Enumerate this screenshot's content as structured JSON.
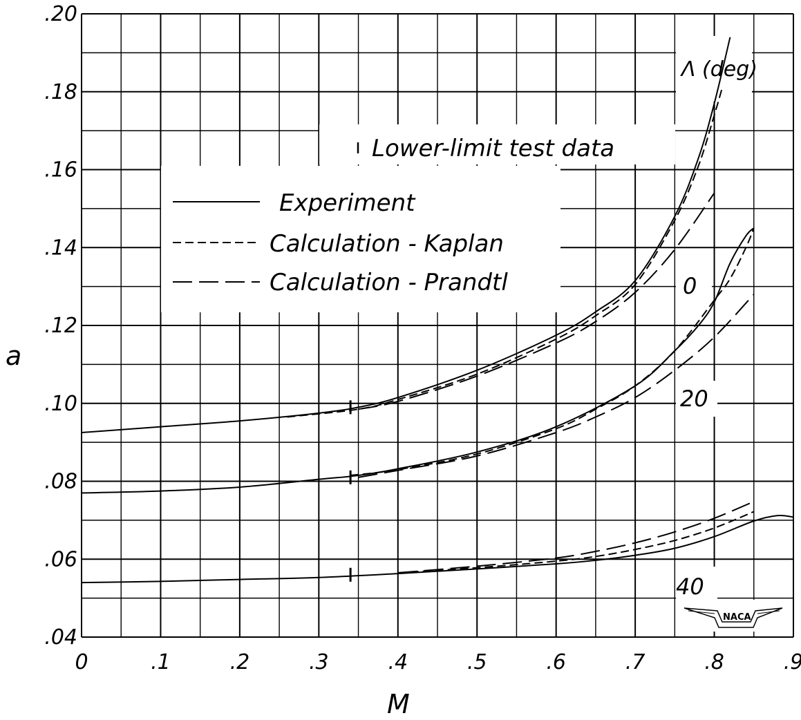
{
  "chart_data": {
    "type": "line",
    "xlabel": "M",
    "ylabel": "a",
    "xlim": [
      0,
      0.9
    ],
    "ylim": [
      0.04,
      0.2
    ],
    "xticks": [
      "0",
      ".1",
      ".2",
      ".3",
      ".4",
      ".5",
      ".6",
      ".7",
      ".8",
      ".9"
    ],
    "yticks": [
      ".04",
      ".06",
      ".08",
      ".10",
      ".12",
      ".14",
      ".16",
      ".18",
      ".20"
    ],
    "grid": true,
    "legend_title": "Λ (deg)",
    "legend": {
      "note": "Lower-limit test data",
      "experiment": "Experiment",
      "kaplan": "Calculation - Kaplan",
      "prandtl": "Calculation - Prandtl"
    },
    "curve_labels": [
      "0",
      "20",
      "40"
    ],
    "curves": [
      {
        "sweep": "0",
        "experiment": {
          "x": [
            0,
            0.1,
            0.2,
            0.3,
            0.35,
            0.4,
            0.5,
            0.6,
            0.65,
            0.7,
            0.75,
            0.78,
            0.8,
            0.82
          ],
          "y": [
            0.0925,
            0.094,
            0.0955,
            0.0975,
            0.099,
            0.1015,
            0.1085,
            0.1175,
            0.1235,
            0.1315,
            0.148,
            0.163,
            0.177,
            0.194
          ]
        },
        "kaplan": {
          "x": [
            0.26,
            0.35,
            0.4,
            0.5,
            0.6,
            0.65,
            0.7,
            0.75,
            0.78,
            0.8,
            0.81
          ],
          "y": [
            0.0965,
            0.0985,
            0.101,
            0.1075,
            0.1165,
            0.1225,
            0.1305,
            0.147,
            0.161,
            0.174,
            0.181
          ]
        },
        "prandtl": {
          "x": [
            0.35,
            0.4,
            0.5,
            0.6,
            0.65,
            0.7,
            0.75,
            0.8
          ],
          "y": [
            0.0985,
            0.1005,
            0.107,
            0.1155,
            0.121,
            0.1285,
            0.1395,
            0.154
          ]
        },
        "test_point": {
          "x": 0.34,
          "y": 0.099
        }
      },
      {
        "sweep": "20",
        "experiment": {
          "x": [
            0,
            0.1,
            0.2,
            0.3,
            0.35,
            0.4,
            0.5,
            0.6,
            0.7,
            0.75,
            0.78,
            0.8,
            0.82,
            0.84,
            0.85
          ],
          "y": [
            0.077,
            0.0775,
            0.0785,
            0.0805,
            0.0815,
            0.0832,
            0.0875,
            0.094,
            0.1045,
            0.1135,
            0.12,
            0.126,
            0.136,
            0.143,
            0.145
          ]
        },
        "kaplan": {
          "x": [
            0.34,
            0.4,
            0.5,
            0.6,
            0.65,
            0.7,
            0.75,
            0.8,
            0.82,
            0.84,
            0.85
          ],
          "y": [
            0.0815,
            0.083,
            0.087,
            0.0935,
            0.0985,
            0.1045,
            0.1135,
            0.1265,
            0.132,
            0.14,
            0.145
          ]
        },
        "prandtl": {
          "x": [
            0.35,
            0.4,
            0.5,
            0.6,
            0.65,
            0.7,
            0.75,
            0.8,
            0.85
          ],
          "y": [
            0.081,
            0.0828,
            0.0865,
            0.0925,
            0.0965,
            0.1015,
            0.1085,
            0.117,
            0.128
          ]
        },
        "test_point": {
          "x": 0.34,
          "y": 0.081
        }
      },
      {
        "sweep": "40",
        "experiment": {
          "x": [
            0,
            0.1,
            0.2,
            0.3,
            0.4,
            0.5,
            0.6,
            0.65,
            0.7,
            0.75,
            0.8,
            0.85,
            0.88,
            0.9
          ],
          "y": [
            0.054,
            0.0543,
            0.0548,
            0.0553,
            0.0563,
            0.0575,
            0.0588,
            0.0597,
            0.061,
            0.0628,
            0.0658,
            0.0698,
            0.0712,
            0.0708
          ]
        },
        "kaplan": {
          "x": [
            0.4,
            0.5,
            0.6,
            0.65,
            0.7,
            0.75,
            0.8,
            0.85
          ],
          "y": [
            0.0565,
            0.0578,
            0.0595,
            0.0607,
            0.0625,
            0.0648,
            0.068,
            0.0722
          ]
        },
        "prandtl": {
          "x": [
            0.4,
            0.5,
            0.6,
            0.65,
            0.7,
            0.75,
            0.8,
            0.85
          ],
          "y": [
            0.0565,
            0.0582,
            0.0603,
            0.062,
            0.0642,
            0.067,
            0.0705,
            0.0748
          ]
        },
        "test_point": {
          "x": 0.34,
          "y": 0.056
        }
      }
    ]
  },
  "logo_text": "NACA"
}
